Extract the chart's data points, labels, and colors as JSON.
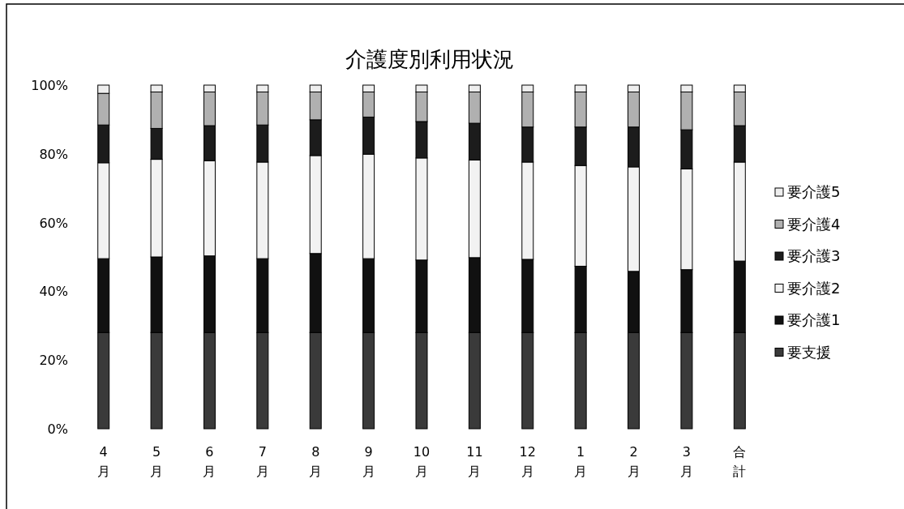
{
  "chart_data": {
    "type": "bar",
    "stacked": true,
    "title": "介護度別利用状況",
    "categories": [
      "4月",
      "5月",
      "6月",
      "7月",
      "8月",
      "9月",
      "10月",
      "11月",
      "12月",
      "1月",
      "2月",
      "3月",
      "合計"
    ],
    "ylim": [
      0,
      100
    ],
    "yticks": [
      {
        "value": 0,
        "label": "0%"
      },
      {
        "value": 20,
        "label": "20%"
      },
      {
        "value": 40,
        "label": "40%"
      },
      {
        "value": 60,
        "label": "60%"
      },
      {
        "value": 80,
        "label": "80%"
      },
      {
        "value": 100,
        "label": "100%"
      }
    ],
    "grid": false,
    "legend": "right",
    "series": [
      {
        "name": "要支援",
        "color": "#3a3a3a",
        "values": [
          28,
          28,
          28,
          28,
          28,
          28,
          28,
          28,
          28,
          28,
          28,
          28,
          28
        ]
      },
      {
        "name": "要介護1",
        "color": "#111111",
        "values": [
          21.5,
          22,
          22.3,
          21.5,
          23,
          21.5,
          21.1,
          21.8,
          21.3,
          19.3,
          17.8,
          18.3,
          20.8
        ]
      },
      {
        "name": "要介護2",
        "color": "#f2f2f2",
        "values": [
          27.9,
          28.4,
          27.7,
          28.1,
          28.5,
          30.4,
          29.7,
          28.4,
          28.3,
          29.3,
          30.4,
          29.3,
          28.8
        ]
      },
      {
        "name": "要介護3",
        "color": "#1c1c1c",
        "values": [
          11,
          9,
          10.2,
          10.8,
          10.4,
          10.8,
          10.6,
          10.7,
          10.2,
          11.2,
          11.6,
          11.4,
          10.6
        ]
      },
      {
        "name": "要介護4",
        "color": "#b0b0b0",
        "values": [
          9.2,
          10.6,
          9.8,
          9.6,
          8.1,
          7.3,
          8.6,
          9.1,
          10.2,
          10.2,
          10.2,
          11,
          9.8
        ]
      },
      {
        "name": "要介護5",
        "color": "#eeeeee",
        "values": [
          2.4,
          2,
          2,
          2,
          2,
          2,
          2,
          2,
          2,
          2,
          2,
          2,
          2
        ]
      }
    ]
  }
}
